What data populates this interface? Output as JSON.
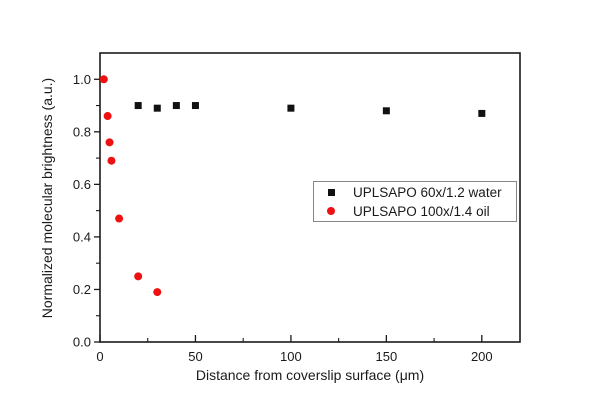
{
  "colors": {
    "background": "#ffffff",
    "frame": "#1a1a1a",
    "tick_label": "#1a1a1a",
    "legend_border": "#858585",
    "series_water": "#111111",
    "series_oil": "#ee1111"
  },
  "chart_data": {
    "type": "scatter",
    "title": "",
    "xlabel": "Distance from coverslip surface (μm)",
    "ylabel": "Normalized molecular brightness (a.u.)",
    "xlim": [
      0,
      220
    ],
    "ylim": [
      0,
      1.1
    ],
    "x_major_ticks": [
      0,
      50,
      100,
      150,
      200
    ],
    "x_minor_ticks": [
      25,
      75,
      125,
      175
    ],
    "y_major_ticks": [
      0.0,
      0.2,
      0.4,
      0.6,
      0.8,
      1.0
    ],
    "y_minor_ticks": [
      0.1,
      0.3,
      0.5,
      0.7,
      0.9
    ],
    "grid": false,
    "legend_position": "middle-right",
    "series": [
      {
        "name": "UPLSAPO 60x/1.2 water",
        "marker": "square",
        "color": "#111111",
        "x": [
          20,
          30,
          40,
          50,
          100,
          150,
          200
        ],
        "y": [
          0.9,
          0.89,
          0.9,
          0.9,
          0.89,
          0.88,
          0.87
        ]
      },
      {
        "name": "UPLSAPO 100x/1.4 oil",
        "marker": "circle",
        "color": "#ee1111",
        "x": [
          2,
          4,
          5,
          6,
          10,
          20,
          30
        ],
        "y": [
          1.0,
          0.86,
          0.76,
          0.69,
          0.47,
          0.25,
          0.19
        ]
      }
    ]
  }
}
